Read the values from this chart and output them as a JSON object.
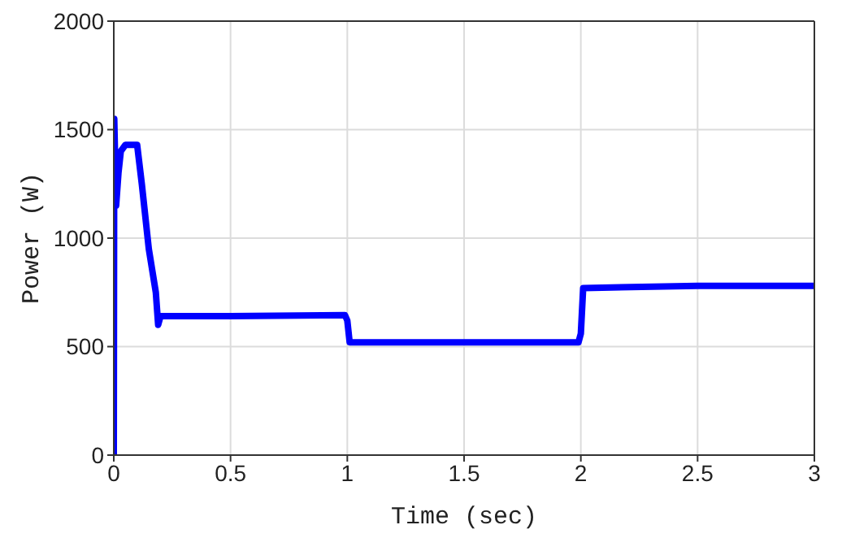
{
  "chart_data": {
    "type": "line",
    "xlabel": "Time (sec)",
    "ylabel": "Power (W)",
    "x": [
      0,
      0.002,
      0.01,
      0.02,
      0.03,
      0.05,
      0.1,
      0.12,
      0.15,
      0.18,
      0.19,
      0.2,
      0.5,
      0.99,
      1.0,
      1.01,
      1.5,
      1.99,
      2.0,
      2.01,
      2.5,
      3.0
    ],
    "series": [
      {
        "color": "#0000ff",
        "values": [
          0,
          1550,
          1150,
          1300,
          1400,
          1430,
          1430,
          1250,
          950,
          750,
          600,
          640,
          640,
          645,
          620,
          520,
          520,
          520,
          560,
          770,
          780,
          780
        ]
      }
    ],
    "xlim": [
      0,
      3
    ],
    "xticks": [
      0,
      0.5,
      1,
      1.5,
      2,
      2.5,
      3
    ],
    "ylim": [
      0,
      2000
    ],
    "yticks": [
      0,
      500,
      1000,
      1500,
      2000
    ],
    "grid": true,
    "marker": "none",
    "line_style": "solid"
  }
}
